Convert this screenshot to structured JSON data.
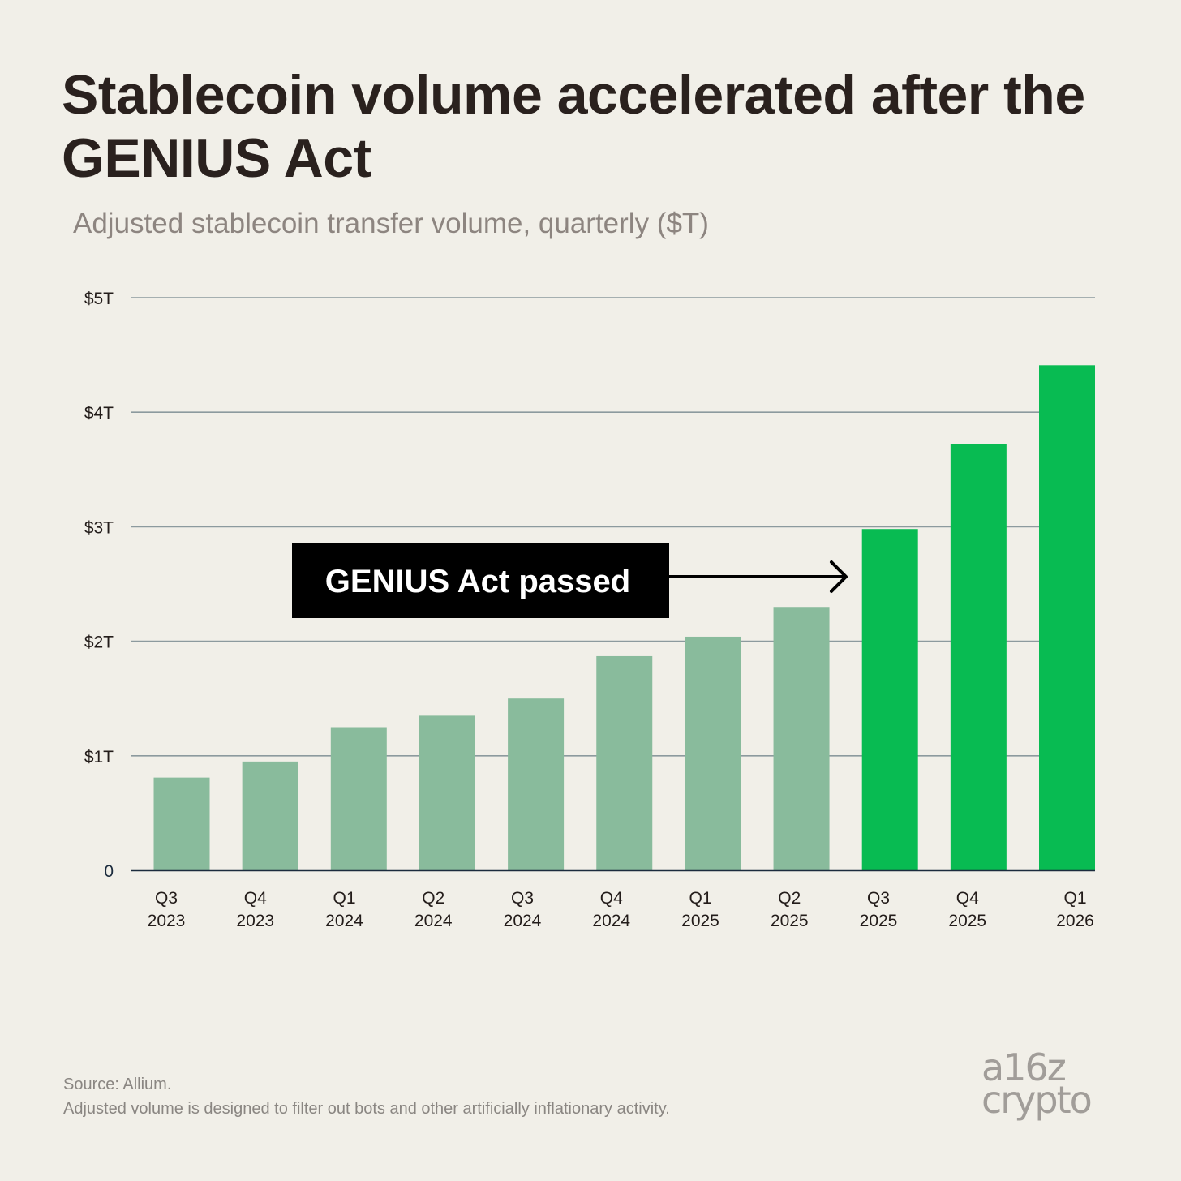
{
  "title": "Stablecoin volume accelerated after the GENIUS Act",
  "subtitle": "Adjusted stablecoin transfer volume, quarterly ($T)",
  "annotation": "GENIUS Act passed",
  "footer": {
    "source": "Source: Allium.",
    "note": "Adjusted volume is designed to filter out bots and other artificially inflationary activity."
  },
  "logo": {
    "line1": "a16z",
    "line2": "crypto"
  },
  "colors": {
    "background": "#f1efe8",
    "bar_before": "#89bb9c",
    "bar_after": "#08bb52",
    "gridline": "#8c9a9e",
    "axis": "#1b2b3d",
    "annotation_bg": "#000000",
    "annotation_text": "#ffffff"
  },
  "chart_data": {
    "type": "bar",
    "title": "Stablecoin volume accelerated after the GENIUS Act",
    "subtitle": "Adjusted stablecoin transfer volume, quarterly ($T)",
    "categories": [
      [
        "Q3",
        "2023"
      ],
      [
        "Q4",
        "2023"
      ],
      [
        "Q1",
        "2024"
      ],
      [
        "Q2",
        "2024"
      ],
      [
        "Q3",
        "2024"
      ],
      [
        "Q4",
        "2024"
      ],
      [
        "Q1",
        "2025"
      ],
      [
        "Q2",
        "2025"
      ],
      [
        "Q3",
        "2025"
      ],
      [
        "Q4",
        "2025"
      ],
      [
        "Q1",
        "2026"
      ]
    ],
    "values": [
      0.81,
      0.95,
      1.25,
      1.35,
      1.5,
      1.87,
      2.04,
      2.3,
      2.98,
      3.72,
      4.41
    ],
    "highlight_from_index": 8,
    "ylim": [
      0,
      5
    ],
    "yticks": [
      {
        "value": 0,
        "label": "0"
      },
      {
        "value": 1,
        "label": "$1T"
      },
      {
        "value": 2,
        "label": "$2T"
      },
      {
        "value": 3,
        "label": "$3T"
      },
      {
        "value": 4,
        "label": "$4T"
      },
      {
        "value": 5,
        "label": "$5T"
      }
    ],
    "grid": true,
    "legend": "none",
    "annotations": [
      {
        "text": "GENIUS Act passed",
        "points_to_category_index": 8
      }
    ]
  }
}
